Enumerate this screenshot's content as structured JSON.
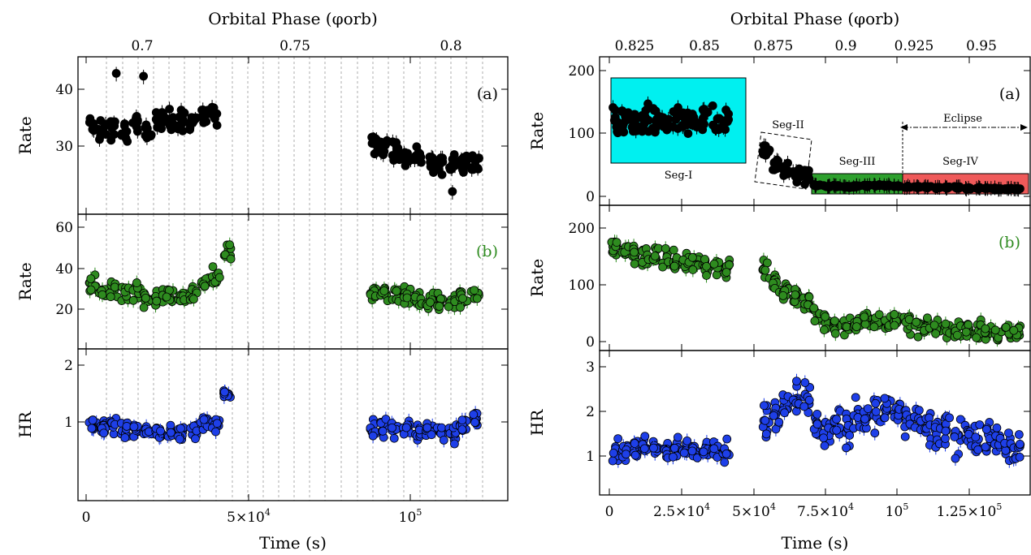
{
  "chart_data": [
    {
      "type": "scatter",
      "panel": "left",
      "top_axis_title": "Orbital Phase (φorb)",
      "top_ticks": [
        "0.7",
        "0.75",
        "0.8"
      ],
      "xlabel": "Time (s)",
      "x_tick_labels": [
        "0",
        "5×10",
        "4",
        "10",
        "5"
      ],
      "xlim": [
        0,
        122000
      ],
      "subplots": [
        {
          "label": "(a)",
          "ylabel": "Rate",
          "yticks": [
            "30",
            "40"
          ],
          "ylim": [
            19,
            47
          ],
          "color": "#000000",
          "x": [
            2000,
            5000,
            8500,
            12000,
            15500,
            19000,
            22500,
            26000,
            29500,
            33000,
            36500,
            40000,
            88500,
            92000,
            95500,
            99000,
            102500,
            106000,
            109500,
            113000,
            116500,
            120000
          ],
          "y": [
            34,
            32.5,
            33.5,
            33,
            33.5,
            33,
            34.5,
            34.5,
            34.5,
            34.5,
            35.5,
            36,
            30.5,
            30,
            29,
            28.5,
            28,
            27.5,
            27,
            27,
            26.5,
            27
          ],
          "outliers": [
            [
              9300,
              42.8
            ],
            [
              17700,
              42.3
            ],
            [
              113000,
              22
            ]
          ]
        },
        {
          "label": "(b)",
          "ylabel": "Rate",
          "yticks": [
            "20",
            "40",
            "60"
          ],
          "ylim": [
            3,
            68
          ],
          "color": "#2e8b1f",
          "x": [
            2000,
            5000,
            8500,
            12000,
            15500,
            19000,
            22500,
            26000,
            29500,
            33000,
            36500,
            40000,
            43500,
            88500,
            92000,
            95500,
            99000,
            102500,
            106000,
            109500,
            113000,
            116500,
            120000
          ],
          "y": [
            32,
            28,
            30,
            29,
            28,
            26,
            26,
            27,
            27,
            28,
            33,
            36,
            49,
            28,
            28,
            27,
            26,
            25,
            24,
            24,
            23,
            26,
            29
          ]
        },
        {
          "label": "",
          "ylabel": "HR",
          "yticks": [
            "1",
            "2"
          ],
          "ylim": [
            0,
            2.3
          ],
          "color": "#1e3fe8",
          "x": [
            2000,
            5000,
            8500,
            12000,
            15500,
            19000,
            22500,
            26000,
            29500,
            33000,
            36500,
            40000,
            43500,
            88500,
            92000,
            95500,
            99000,
            102500,
            106000,
            109500,
            113000,
            116500,
            120000
          ],
          "y": [
            0.95,
            0.9,
            0.95,
            0.85,
            0.85,
            0.8,
            0.8,
            0.8,
            0.8,
            0.85,
            1.0,
            0.95,
            1.45,
            0.9,
            0.9,
            0.9,
            0.85,
            0.85,
            0.85,
            0.8,
            0.75,
            0.95,
            1.05
          ]
        }
      ]
    },
    {
      "type": "scatter",
      "panel": "right",
      "top_axis_title": "Orbital Phase (φorb)",
      "top_ticks": [
        "0.825",
        "0.85",
        "0.875",
        "0.9",
        "0.925",
        "0.95"
      ],
      "xlabel": "Time (s)",
      "x_tick_labels": [
        "0",
        "2.5×10",
        "4",
        "5×10",
        "4",
        "7.5×10",
        "4",
        "10",
        "5",
        "1.25×10",
        "5"
      ],
      "xlim": [
        -1500,
        143000
      ],
      "subplots": [
        {
          "label": "(a)",
          "ylabel": "Rate",
          "yticks": [
            "0",
            "100",
            "200"
          ],
          "ylim": [
            -12,
            222
          ],
          "color": "#000000",
          "x": [
            2000,
            5500,
            9000,
            12500,
            16000,
            19500,
            23000,
            26500,
            30000,
            33500,
            37000,
            40500,
            54500,
            58000,
            61500,
            65000,
            68500,
            72000,
            75500,
            79000,
            82500,
            86000,
            89500,
            93000,
            96500,
            100000,
            103500,
            107000,
            110500,
            114000,
            117500,
            121000,
            124500,
            128000,
            131500,
            135000,
            138500,
            141500
          ],
          "y": [
            125,
            120,
            118,
            125,
            115,
            120,
            122,
            120,
            118,
            120,
            115,
            118,
            70,
            50,
            42,
            36,
            30,
            18,
            16,
            16,
            15,
            16,
            17,
            18,
            17,
            16,
            15,
            15,
            15,
            14,
            14,
            14,
            13,
            13,
            13,
            12,
            12,
            12
          ],
          "annotations": [
            "Seg-I",
            "Seg-II",
            "Seg-III",
            "Seg-IV",
            "Eclipse"
          ]
        },
        {
          "label": "(b)",
          "ylabel": "Rate",
          "yticks": [
            "0",
            "100",
            "200"
          ],
          "ylim": [
            -12,
            238
          ],
          "color": "#2e8b1f",
          "x": [
            2000,
            5500,
            9000,
            12500,
            16000,
            19500,
            23000,
            26500,
            30000,
            33500,
            37000,
            40500,
            54500,
            58000,
            61500,
            65000,
            68500,
            72000,
            75500,
            79000,
            82500,
            86000,
            89500,
            93000,
            96500,
            100000,
            103500,
            107000,
            110500,
            114000,
            117500,
            121000,
            124500,
            128000,
            131500,
            135000,
            138500,
            141500
          ],
          "y": [
            165,
            160,
            155,
            148,
            150,
            145,
            140,
            142,
            140,
            135,
            138,
            130,
            130,
            100,
            85,
            80,
            70,
            45,
            35,
            30,
            28,
            32,
            38,
            35,
            32,
            40,
            30,
            28,
            26,
            25,
            22,
            20,
            20,
            18,
            18,
            16,
            15,
            14
          ]
        },
        {
          "label": "",
          "ylabel": "HR",
          "yticks": [
            "1",
            "2",
            "3"
          ],
          "ylim": [
            0.2,
            3.5
          ],
          "color": "#1e3fe8",
          "x": [
            2000,
            5500,
            9000,
            12500,
            16000,
            19500,
            23000,
            26500,
            30000,
            33500,
            37000,
            40500,
            54500,
            58000,
            61500,
            65000,
            68500,
            72000,
            75500,
            79000,
            82500,
            86000,
            89500,
            93000,
            96500,
            100000,
            103500,
            107000,
            110500,
            114000,
            117500,
            121000,
            124500,
            128000,
            131500,
            135000,
            138500,
            141500
          ],
          "y": [
            1.15,
            1.15,
            1.15,
            1.2,
            1.2,
            1.15,
            1.2,
            1.15,
            1.15,
            1.1,
            1.1,
            1.1,
            1.8,
            1.95,
            2.0,
            2.3,
            2.2,
            1.6,
            1.5,
            1.7,
            1.6,
            1.9,
            1.8,
            1.9,
            2.1,
            1.9,
            1.8,
            1.7,
            1.6,
            1.6,
            1.5,
            1.45,
            1.4,
            1.4,
            1.35,
            1.3,
            1.25,
            1.2
          ]
        }
      ]
    }
  ]
}
